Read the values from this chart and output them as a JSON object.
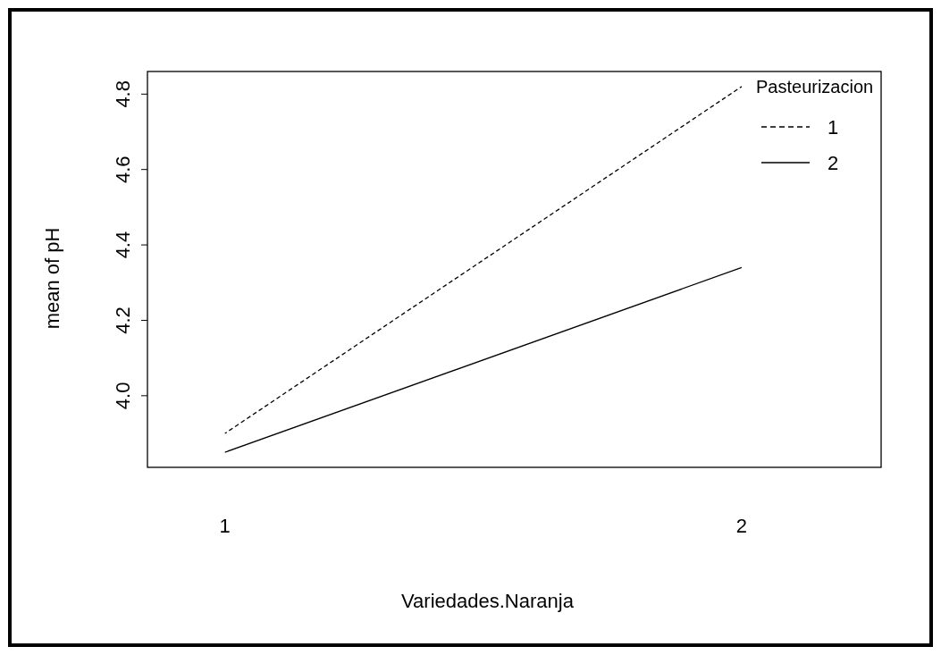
{
  "chart_data": {
    "type": "line",
    "xlabel": "Variedades.Naranja",
    "ylabel": "mean of  pH",
    "legend_title": "Pasteurizacion",
    "x": [
      1,
      2
    ],
    "xlim": [
      0.85,
      2.27
    ],
    "xticks": [
      1,
      2
    ],
    "series": [
      {
        "name": "1",
        "color": "#000000",
        "line_style": "dashed",
        "values": [
          3.9,
          4.82
        ]
      },
      {
        "name": "2",
        "color": "#000000",
        "line_style": "solid",
        "values": [
          3.85,
          4.34
        ]
      }
    ],
    "ylim": [
      3.81,
      4.86
    ],
    "yticks": [
      {
        "value": 4,
        "label": "4.0"
      },
      4.2,
      4.4,
      4.6,
      4.8
    ],
    "grid": false,
    "legend": "top right",
    "marker": "none"
  }
}
